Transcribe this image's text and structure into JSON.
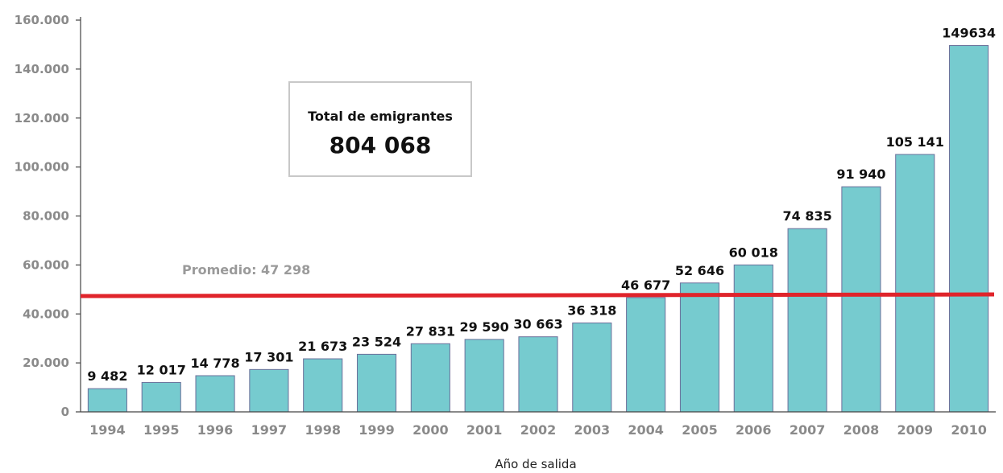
{
  "chart_data": {
    "type": "bar",
    "categories": [
      "1994",
      "1995",
      "1996",
      "1997",
      "1998",
      "1999",
      "2000",
      "2001",
      "2002",
      "2003",
      "2004",
      "2005",
      "2006",
      "2007",
      "2008",
      "2009",
      "2010"
    ],
    "values": [
      9482,
      12017,
      14778,
      17301,
      21673,
      23524,
      27831,
      29590,
      30663,
      36318,
      46677,
      52646,
      60018,
      74835,
      91940,
      105141,
      149634
    ],
    "value_labels": [
      "9 482",
      "12 017",
      "14 778",
      "17 301",
      "21 673",
      "23 524",
      "27 831",
      "29 590",
      "30 663",
      "36 318",
      "46 677",
      "52 646",
      "60 018",
      "74 835",
      "91 940",
      "105 141",
      "149634"
    ],
    "ylim": [
      0,
      160000
    ],
    "yticks": [
      0,
      20000,
      40000,
      60000,
      80000,
      100000,
      120000,
      140000,
      160000
    ],
    "ytick_labels": [
      "0",
      "20.000",
      "40.000",
      "60.000",
      "80.000",
      "100.000",
      "120.000",
      "140.000",
      "160.000"
    ],
    "xlabel": "Año de salida",
    "ylabel": "",
    "grid": false,
    "average": {
      "value": 47298,
      "label": "Promedio: 47 298",
      "color": "#e0242b"
    },
    "total_box": {
      "title": "Total de emigrantes",
      "value": "804 068"
    },
    "bar_color": "#76cbcf",
    "bar_border_color": "#6b6f9a"
  }
}
